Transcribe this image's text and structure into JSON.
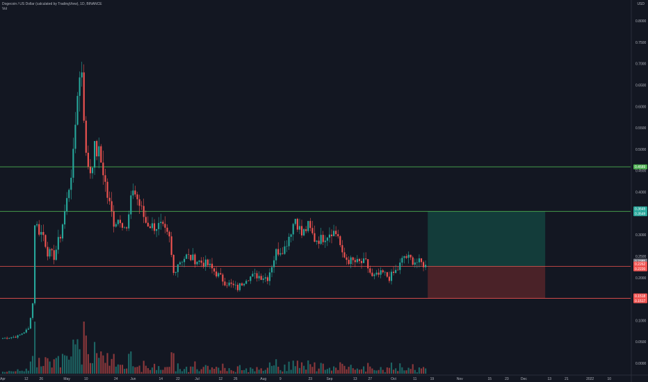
{
  "header": {
    "title": "Dogecoin / US Dollar (calculated by TradingView), 1D, BINANCE",
    "volume_label": "Vol",
    "currency": "USD"
  },
  "chart_data": {
    "type": "candlestick",
    "symbol": "Dogecoin / US Dollar",
    "interval": "1D",
    "exchange": "BINANCE",
    "y_axis": {
      "unit": "USD",
      "ylim": [
        -0.02,
        0.82
      ],
      "tick_labels": [
        "0.8000",
        "0.7500",
        "0.7000",
        "0.6500",
        "0.6000",
        "0.5500",
        "0.5000",
        "0.4500",
        "0.4000",
        "0.3500",
        "0.3000",
        "0.2500",
        "0.2000",
        "0.1500",
        "0.1000",
        "0.0500",
        "0.0000"
      ],
      "ticks": [
        0.8,
        0.75,
        0.7,
        0.65,
        0.6,
        0.55,
        0.5,
        0.45,
        0.4,
        0.35,
        0.3,
        0.25,
        0.2,
        0.15,
        0.1,
        0.05,
        0.0
      ]
    },
    "x_axis": {
      "range": [
        "2021-04-01",
        "2022-01-20"
      ],
      "tick_labels": [
        "Apr",
        "12",
        "26",
        "May",
        "10",
        "24",
        "Jun",
        "14",
        "22",
        "Jul",
        "12",
        "26",
        "Aug",
        "9",
        "23",
        "Sep",
        "13",
        "27",
        "Oct",
        "11",
        "19",
        "Nov",
        "15",
        "23",
        "Dec",
        "13",
        "21",
        "2022",
        "10"
      ],
      "tick_dates": [
        "2021-04-01",
        "2021-04-12",
        "2021-04-19",
        "2021-05-01",
        "2021-05-10",
        "2021-05-24",
        "2021-06-01",
        "2021-06-14",
        "2021-06-22",
        "2021-07-01",
        "2021-07-12",
        "2021-07-19",
        "2021-08-01",
        "2021-08-09",
        "2021-08-23",
        "2021-09-01",
        "2021-09-13",
        "2021-09-20",
        "2021-10-01",
        "2021-10-11",
        "2021-10-19",
        "2021-11-01",
        "2021-11-15",
        "2021-11-23",
        "2021-12-01",
        "2021-12-13",
        "2021-12-21",
        "2022-01-01",
        "2022-01-10"
      ]
    },
    "horizontal_levels": [
      {
        "price": 0.4589,
        "color": "#4caf50"
      },
      {
        "price": 0.3549,
        "color": "#4caf50"
      },
      {
        "price": 0.2262,
        "color": "#ef5350"
      },
      {
        "price": 0.1518,
        "color": "#ef5350"
      }
    ],
    "price_labels": [
      {
        "lines": [
          "0.4589"
        ],
        "color": "#4caf50",
        "price": 0.4589
      },
      {
        "lines": [
          "0.3649",
          "0.3549"
        ],
        "color": "#26a69a",
        "price": 0.3549
      },
      {
        "lines": [
          "0.2385"
        ],
        "color": "#787b86",
        "price": 0.2385
      },
      {
        "lines": [
          "0.2262",
          "0.2220"
        ],
        "color": "#ef5350",
        "price": 0.2262
      },
      {
        "lines": [
          "0.1518",
          "0.1517"
        ],
        "color": "#ef5350",
        "price": 0.1518
      }
    ],
    "position_tool": {
      "start_date": "2021-10-17",
      "end_date": "2021-12-11",
      "entry": 0.2262,
      "target": 0.3549,
      "stop": 0.1518,
      "profit_color": "#133c3a",
      "loss_color": "#4a2228"
    },
    "candle_anchors": [
      [
        "2021-04-01",
        0.058
      ],
      [
        "2021-04-08",
        0.063
      ],
      [
        "2021-04-13",
        0.08
      ],
      [
        "2021-04-15",
        0.14
      ],
      [
        "2021-04-16",
        0.33
      ],
      [
        "2021-04-18",
        0.31
      ],
      [
        "2021-04-20",
        0.3
      ],
      [
        "2021-04-22",
        0.26
      ],
      [
        "2021-04-25",
        0.25
      ],
      [
        "2021-04-28",
        0.3
      ],
      [
        "2021-05-01",
        0.38
      ],
      [
        "2021-05-04",
        0.48
      ],
      [
        "2021-05-06",
        0.64
      ],
      [
        "2021-05-08",
        0.69
      ],
      [
        "2021-05-10",
        0.48
      ],
      [
        "2021-05-12",
        0.45
      ],
      [
        "2021-05-14",
        0.5
      ],
      [
        "2021-05-16",
        0.49
      ],
      [
        "2021-05-18",
        0.45
      ],
      [
        "2021-05-20",
        0.39
      ],
      [
        "2021-05-23",
        0.33
      ],
      [
        "2021-05-26",
        0.34
      ],
      [
        "2021-05-29",
        0.31
      ],
      [
        "2021-06-01",
        0.41
      ],
      [
        "2021-06-04",
        0.37
      ],
      [
        "2021-06-07",
        0.33
      ],
      [
        "2021-06-10",
        0.32
      ],
      [
        "2021-06-14",
        0.32
      ],
      [
        "2021-06-18",
        0.29
      ],
      [
        "2021-06-20",
        0.21
      ],
      [
        "2021-06-22",
        0.235
      ],
      [
        "2021-06-26",
        0.25
      ],
      [
        "2021-07-01",
        0.24
      ],
      [
        "2021-07-06",
        0.23
      ],
      [
        "2021-07-10",
        0.21
      ],
      [
        "2021-07-14",
        0.19
      ],
      [
        "2021-07-20",
        0.175
      ],
      [
        "2021-07-24",
        0.2
      ],
      [
        "2021-07-29",
        0.205
      ],
      [
        "2021-08-03",
        0.2
      ],
      [
        "2021-08-07",
        0.26
      ],
      [
        "2021-08-11",
        0.27
      ],
      [
        "2021-08-16",
        0.34
      ],
      [
        "2021-08-19",
        0.3
      ],
      [
        "2021-08-22",
        0.32
      ],
      [
        "2021-08-25",
        0.29
      ],
      [
        "2021-08-28",
        0.29
      ],
      [
        "2021-09-02",
        0.31
      ],
      [
        "2021-09-05",
        0.3
      ],
      [
        "2021-09-07",
        0.25
      ],
      [
        "2021-09-10",
        0.24
      ],
      [
        "2021-09-14",
        0.235
      ],
      [
        "2021-09-18",
        0.235
      ],
      [
        "2021-09-21",
        0.2
      ],
      [
        "2021-09-26",
        0.21
      ],
      [
        "2021-09-29",
        0.2
      ],
      [
        "2021-10-03",
        0.22
      ],
      [
        "2021-10-06",
        0.25
      ],
      [
        "2021-10-10",
        0.24
      ],
      [
        "2021-10-14",
        0.233
      ],
      [
        "2021-10-16",
        0.23
      ]
    ]
  }
}
